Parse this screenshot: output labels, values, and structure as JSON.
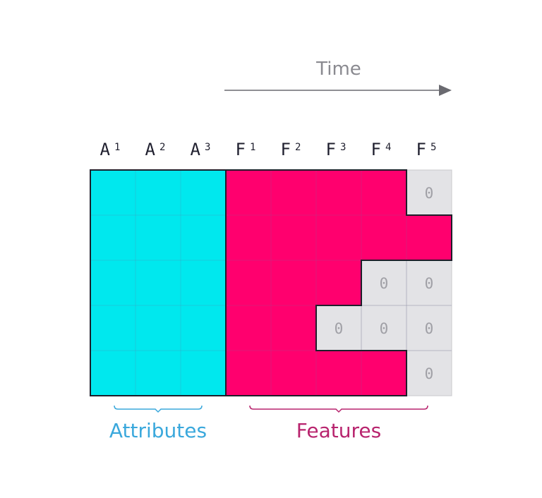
{
  "time_label": "Time",
  "attribute_headers": [
    {
      "base": "A",
      "sup": "1"
    },
    {
      "base": "A",
      "sup": "2"
    },
    {
      "base": "A",
      "sup": "3"
    }
  ],
  "feature_headers": [
    {
      "base": "F",
      "sup": "1"
    },
    {
      "base": "F",
      "sup": "2"
    },
    {
      "base": "F",
      "sup": "3"
    },
    {
      "base": "F",
      "sup": "4"
    },
    {
      "base": "F",
      "sup": "5"
    }
  ],
  "rows": 5,
  "feature_observed_lengths": [
    4,
    5,
    3,
    2,
    4
  ],
  "padding_value": "0",
  "groups": {
    "attributes_label": "Attributes",
    "features_label": "Features"
  },
  "colors": {
    "attributes": "#00e8ee",
    "features": "#ff006e",
    "padding": "#e3e3e6",
    "attributes_label": "#3aa8dc",
    "features_label": "#b8246e"
  }
}
